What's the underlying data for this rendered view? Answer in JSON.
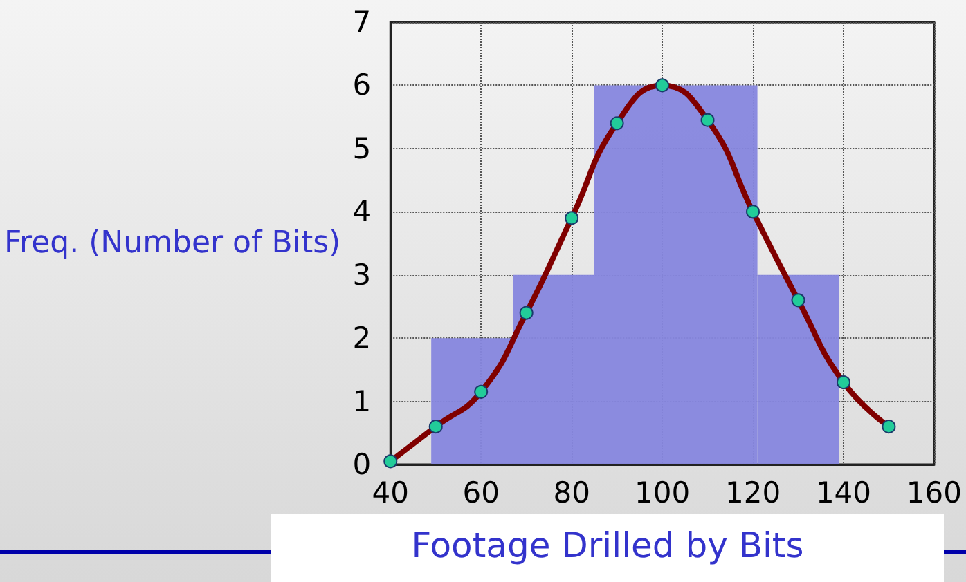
{
  "chart_data": {
    "type": "histogram",
    "xlabel": "Footage Drilled by Bits",
    "ylabel": "Freq. (Number of Bits)",
    "bins": [
      49,
      67,
      85,
      121,
      139
    ],
    "values": [
      2,
      3,
      6,
      3
    ],
    "color": "#8686de",
    "series": [
      {
        "type": "line",
        "color": "#800000",
        "x": [
          40,
          50,
          60,
          70,
          80,
          90,
          100,
          110,
          120,
          130,
          140,
          150
        ],
        "values": [
          0.05,
          0.6,
          1.15,
          2.4,
          3.9,
          5.4,
          6.0,
          5.45,
          4.0,
          2.6,
          1.3,
          0.6
        ]
      }
    ],
    "xlim": [
      40,
      160
    ],
    "xticks": [
      40,
      60,
      80,
      100,
      120,
      140,
      160
    ],
    "ylim": [
      0,
      7
    ],
    "yticks": [
      0,
      1,
      2,
      3,
      4,
      5,
      6,
      7
    ],
    "grid": true,
    "marker": "circle"
  }
}
